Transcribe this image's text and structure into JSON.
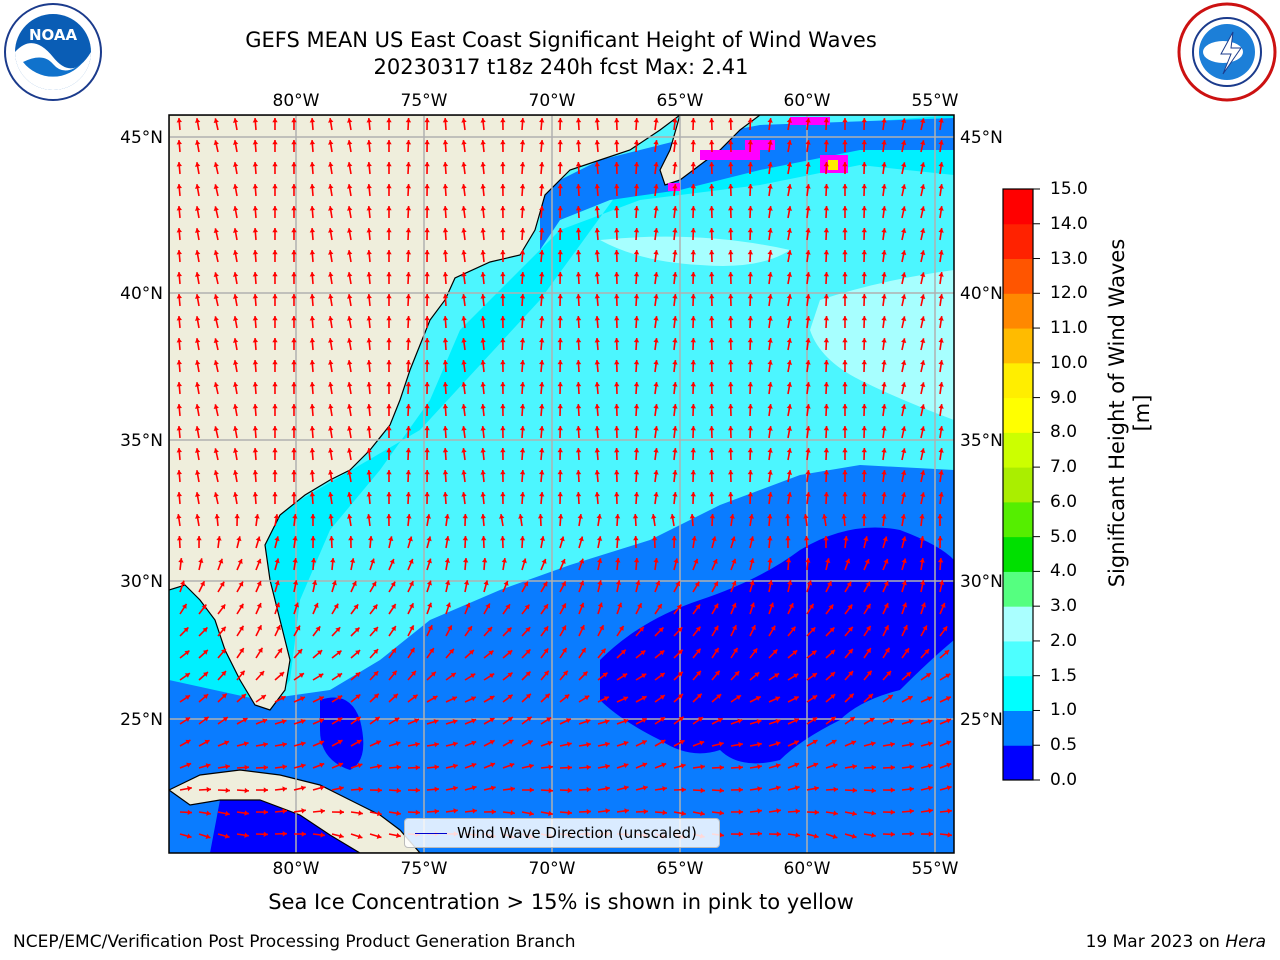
{
  "title": {
    "line1": "GEFS MEAN US East Coast Significant Height of Wind Waves",
    "line2": "20230317 t18z 240h fcst   Max: 2.41"
  },
  "map": {
    "lon_labels": [
      "80°W",
      "75°W",
      "70°W",
      "65°W",
      "60°W",
      "55°W"
    ],
    "lat_labels": [
      "45°N",
      "40°N",
      "35°N",
      "30°N",
      "25°N"
    ],
    "legend_label": "Wind Wave Direction (unscaled)",
    "colors": {
      "land": "#efeedc",
      "band_0": "#0000ff",
      "band_05": "#0a7cff",
      "band_1": "#00f0ff",
      "band_15": "#4cf6ff",
      "band_2": "#a7ffff",
      "arrow": "#ff0000",
      "sea_ice": "#ff00ff"
    }
  },
  "colorbar": {
    "title": "Significant Height of Wind Waves [m]",
    "ticks": [
      "15.0",
      "14.0",
      "13.0",
      "12.0",
      "11.0",
      "10.0",
      "9.0",
      "8.0",
      "7.0",
      "6.0",
      "5.0",
      "4.0",
      "3.0",
      "2.0",
      "1.5",
      "1.0",
      "0.5",
      "0.0"
    ],
    "colors": [
      "#0000ff",
      "#0080ff",
      "#00ffff",
      "#4dffff",
      "#aaffff",
      "#55ff80",
      "#00e000",
      "#55ee00",
      "#aaee00",
      "#ccff00",
      "#ffff00",
      "#ffee00",
      "#ffbb00",
      "#ff8800",
      "#ff5500",
      "#ff2200",
      "#ff0000"
    ]
  },
  "note": "Sea Ice Concentration > 15% is shown in pink to yellow",
  "footer": {
    "left": "NCEP/EMC/Verification Post Processing Product Generation Branch",
    "right_date": "19 Mar 2023 on ",
    "right_host": "Hera"
  }
}
